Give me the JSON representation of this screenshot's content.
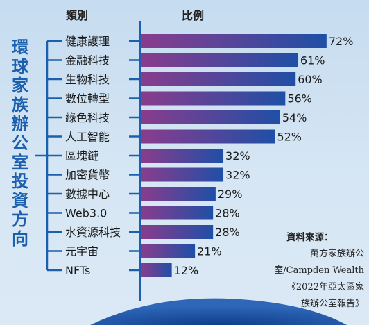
{
  "side_title": "環球家族辦公室投資方向",
  "headers": {
    "category": "類別",
    "ratio": "比例"
  },
  "source": {
    "label": "資料來源：",
    "lines": [
      "萬方家族辦公",
      "室/Campden Wealth",
      "《2022年亞太區家",
      "族辦公室報告》"
    ]
  },
  "colors": {
    "bar_start": "#8a3c8d",
    "bar_end": "#1f4fa6",
    "title": "#1b5fae",
    "bracket": "#1b5fae"
  },
  "chart_data": {
    "type": "bar",
    "orientation": "horizontal",
    "categories": [
      "健康護理",
      "金融科技",
      "生物科技",
      "數位轉型",
      "綠色科技",
      "人工智能",
      "區塊鏈",
      "加密貨幣",
      "數據中心",
      "Web3.0",
      "水資源科技",
      "元宇宙",
      "NFTs"
    ],
    "values": [
      72,
      61,
      60,
      56,
      54,
      52,
      32,
      32,
      29,
      28,
      28,
      21,
      12
    ],
    "labels": [
      "72%",
      "61%",
      "60%",
      "56%",
      "54%",
      "52%",
      "32%",
      "32%",
      "29%",
      "28%",
      "28%",
      "21%",
      "12%"
    ],
    "title": "",
    "xlabel": "比例",
    "ylabel": "類別",
    "xlim": [
      0,
      100
    ],
    "grid": false,
    "legend": "none"
  }
}
